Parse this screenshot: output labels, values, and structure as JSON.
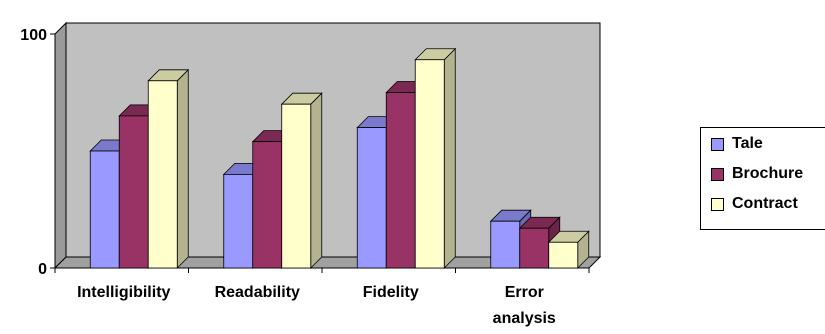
{
  "chart_data": {
    "type": "bar",
    "categories": [
      "Intelligibility",
      "Readability",
      "Fidelity",
      "Error analysis"
    ],
    "category_lines": [
      [
        "Intelligibility"
      ],
      [
        "Readability"
      ],
      [
        "Fidelity"
      ],
      [
        "Error",
        "analysis"
      ]
    ],
    "series": [
      {
        "name": "Tale",
        "values": [
          50,
          40,
          60,
          20
        ],
        "color": "#9999ff",
        "side": "#6b6bb3",
        "top": "#7a7acc"
      },
      {
        "name": "Brochure",
        "values": [
          65,
          54,
          75,
          17
        ],
        "color": "#993366",
        "side": "#6b2347",
        "top": "#7a2952"
      },
      {
        "name": "Contract",
        "values": [
          80,
          70,
          89,
          11
        ],
        "color": "#ffffcc",
        "side": "#b3b38f",
        "top": "#ccccA3"
      }
    ],
    "ylim": [
      0,
      100
    ],
    "yticks": [
      "0",
      "100"
    ],
    "title": "",
    "xlabel": "",
    "ylabel": "",
    "grid": false,
    "legend_position": "right",
    "wall_color": "#c0c0c0",
    "floor_color": "#a0a0a0"
  }
}
